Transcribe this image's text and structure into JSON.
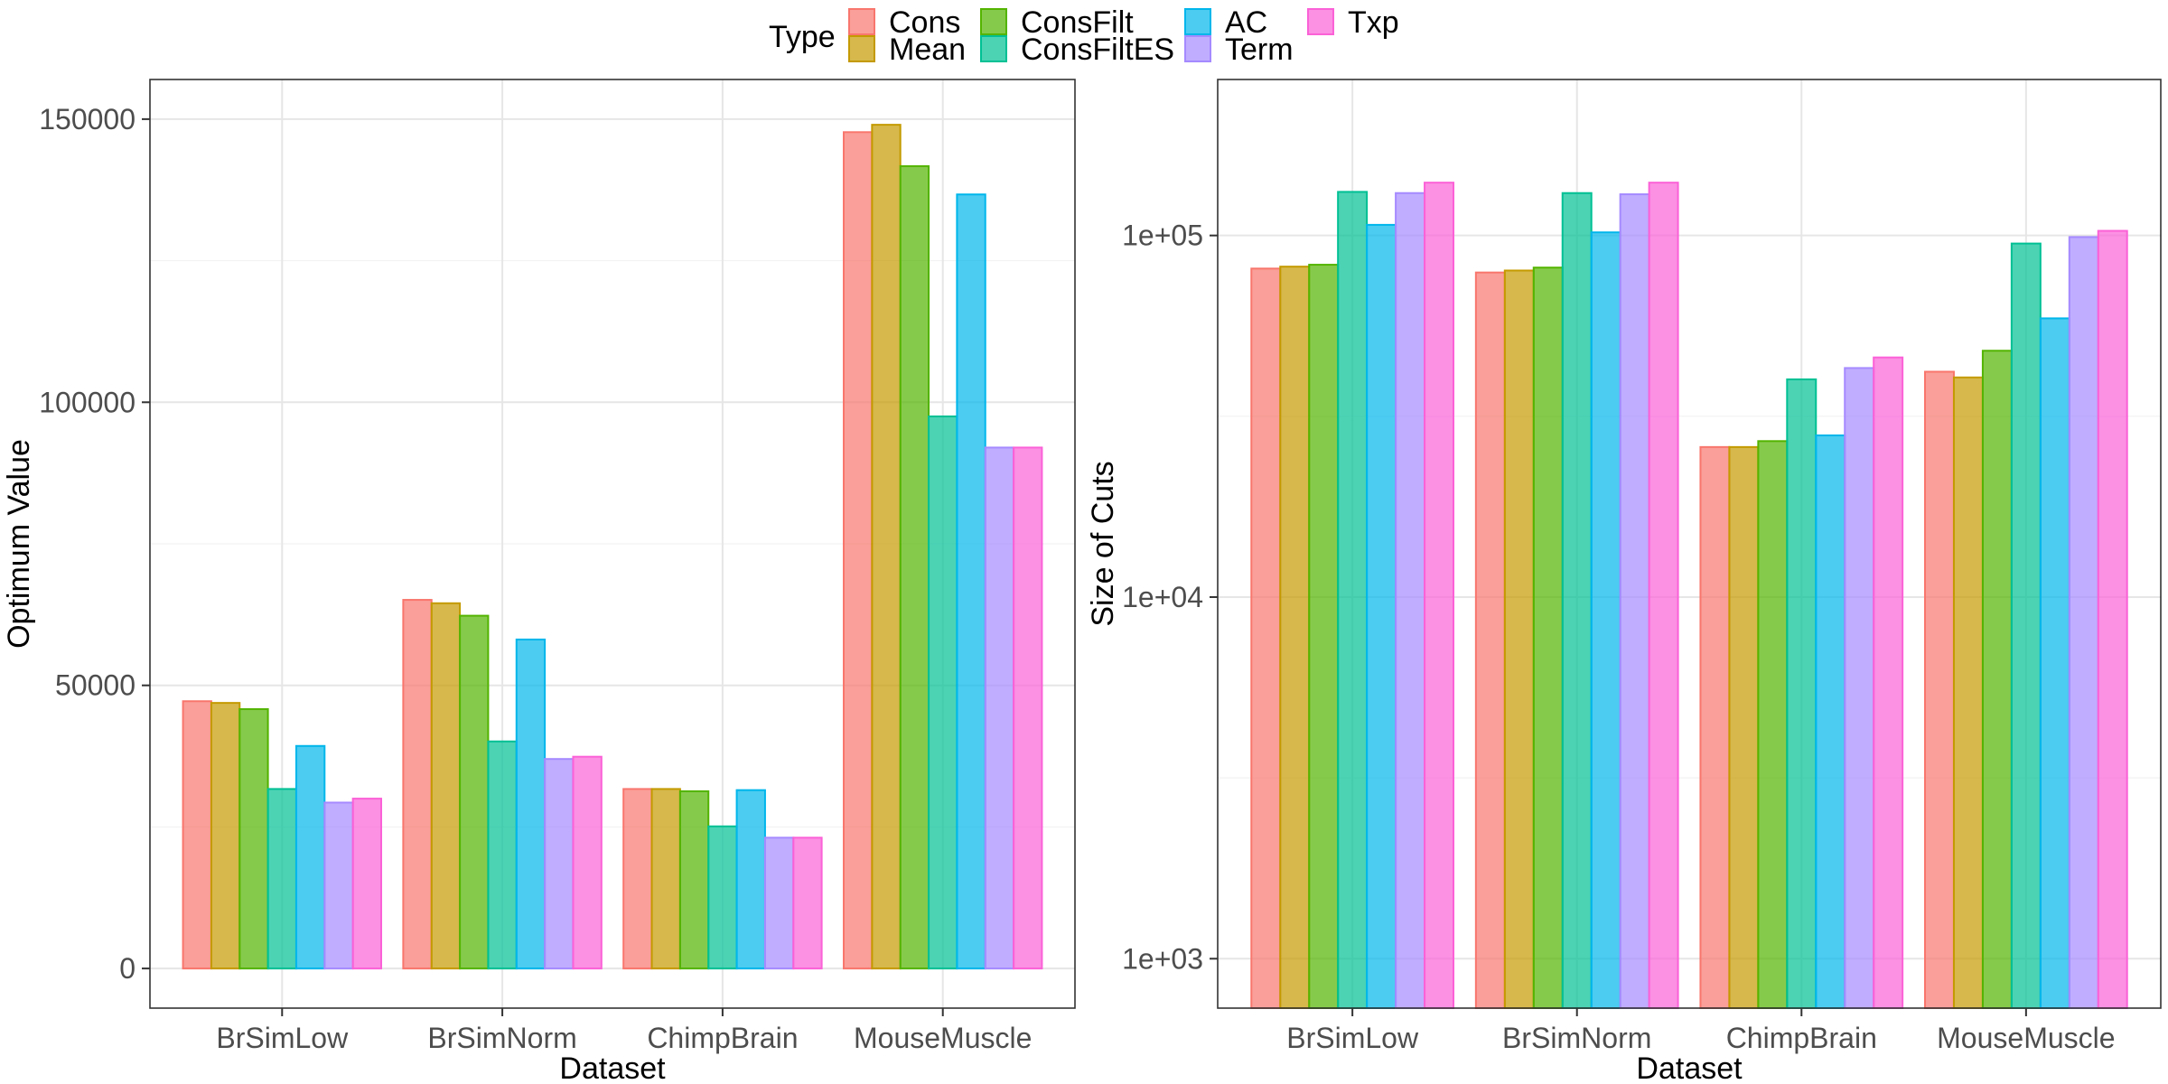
{
  "legend": {
    "title": "Type",
    "placement": "top"
  },
  "series_colors": {
    "Cons": "#F8766D",
    "Mean": "#C49A00",
    "ConsFilt": "#53B400",
    "ConsFiltES": "#00C094",
    "AC": "#00B6EB",
    "Term": "#A58AFF",
    "Txp": "#FB61D7"
  },
  "chart_data": [
    {
      "type": "bar",
      "xlabel": "Dataset",
      "ylabel": "Optimum Value",
      "ylim": [
        -7000,
        157000
      ],
      "yscale": "linear",
      "yticks": [
        0,
        50000,
        100000,
        150000
      ],
      "ytick_labels": [
        "0",
        "50000",
        "100000",
        "150000"
      ],
      "grid": true,
      "categories": [
        "BrSimLow",
        "BrSimNorm",
        "ChimpBrain",
        "MouseMuscle"
      ],
      "series": [
        {
          "name": "Cons",
          "values": [
            47200,
            65100,
            31700,
            147700
          ]
        },
        {
          "name": "Mean",
          "values": [
            46900,
            64500,
            31700,
            149000
          ]
        },
        {
          "name": "ConsFilt",
          "values": [
            45800,
            62300,
            31300,
            141700
          ]
        },
        {
          "name": "ConsFiltES",
          "values": [
            31700,
            40100,
            25100,
            97500
          ]
        },
        {
          "name": "AC",
          "values": [
            39300,
            58100,
            31500,
            136700
          ]
        },
        {
          "name": "Term",
          "values": [
            29300,
            37000,
            23100,
            92000
          ]
        },
        {
          "name": "Txp",
          "values": [
            30000,
            37400,
            23100,
            92000
          ]
        }
      ]
    },
    {
      "type": "bar",
      "xlabel": "Dataset",
      "ylabel": "Size of Cuts",
      "ylim": [
        730,
        270000
      ],
      "yscale": "log10",
      "yticks": [
        1000,
        10000,
        100000
      ],
      "ytick_labels": [
        "1e+03",
        "1e+04",
        "1e+05"
      ],
      "grid": true,
      "categories": [
        "BrSimLow",
        "BrSimNorm",
        "ChimpBrain",
        "MouseMuscle"
      ],
      "series": [
        {
          "name": "Cons",
          "values": [
            81000,
            79000,
            26000,
            42000
          ]
        },
        {
          "name": "Mean",
          "values": [
            82000,
            80000,
            26000,
            40500
          ]
        },
        {
          "name": "ConsFilt",
          "values": [
            83000,
            81500,
            27000,
            48000
          ]
        },
        {
          "name": "ConsFiltES",
          "values": [
            132000,
            131000,
            40000,
            95000
          ]
        },
        {
          "name": "AC",
          "values": [
            107000,
            102000,
            28000,
            59000
          ]
        },
        {
          "name": "Term",
          "values": [
            131000,
            130000,
            43000,
            99000
          ]
        },
        {
          "name": "Txp",
          "values": [
            140000,
            140000,
            46000,
            103000
          ]
        }
      ]
    }
  ]
}
